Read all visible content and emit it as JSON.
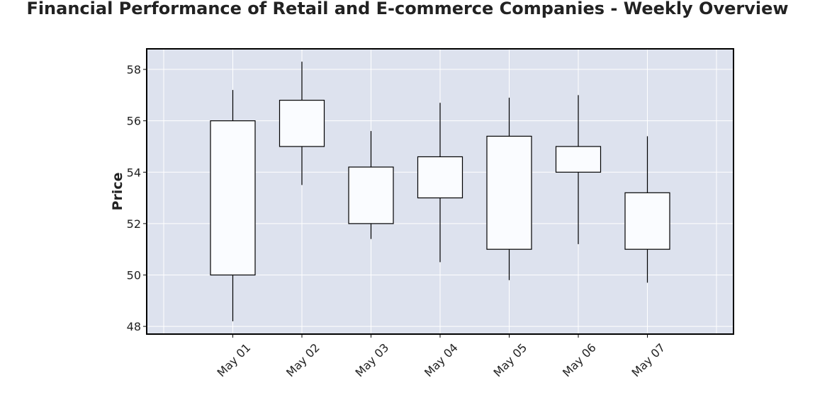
{
  "chart_data": {
    "type": "candlestick",
    "title": "Financial Performance of Retail and E-commerce Companies - Weekly Overview",
    "xlabel": "",
    "ylabel": "Price",
    "categories": [
      "May 01",
      "May 02",
      "May 03",
      "May 04",
      "May 05",
      "May 06",
      "May 07"
    ],
    "open": [
      50.0,
      55.0,
      54.2,
      53.0,
      55.4,
      54.0,
      53.2
    ],
    "close": [
      56.0,
      56.8,
      52.0,
      54.6,
      51.0,
      55.0,
      51.0
    ],
    "high": [
      57.2,
      58.3,
      55.6,
      56.7,
      56.9,
      57.0,
      55.4
    ],
    "low": [
      48.2,
      53.5,
      51.4,
      50.5,
      49.8,
      51.2,
      49.7
    ],
    "ylim": [
      47.7,
      58.8
    ],
    "yticks": [
      48,
      50,
      52,
      54,
      56,
      58
    ],
    "grid": true,
    "colors": {
      "plot_background": "#dde2ee",
      "grid": "#ffffff",
      "candle_fill": "#fafcff",
      "candle_edge": "#000000"
    }
  }
}
